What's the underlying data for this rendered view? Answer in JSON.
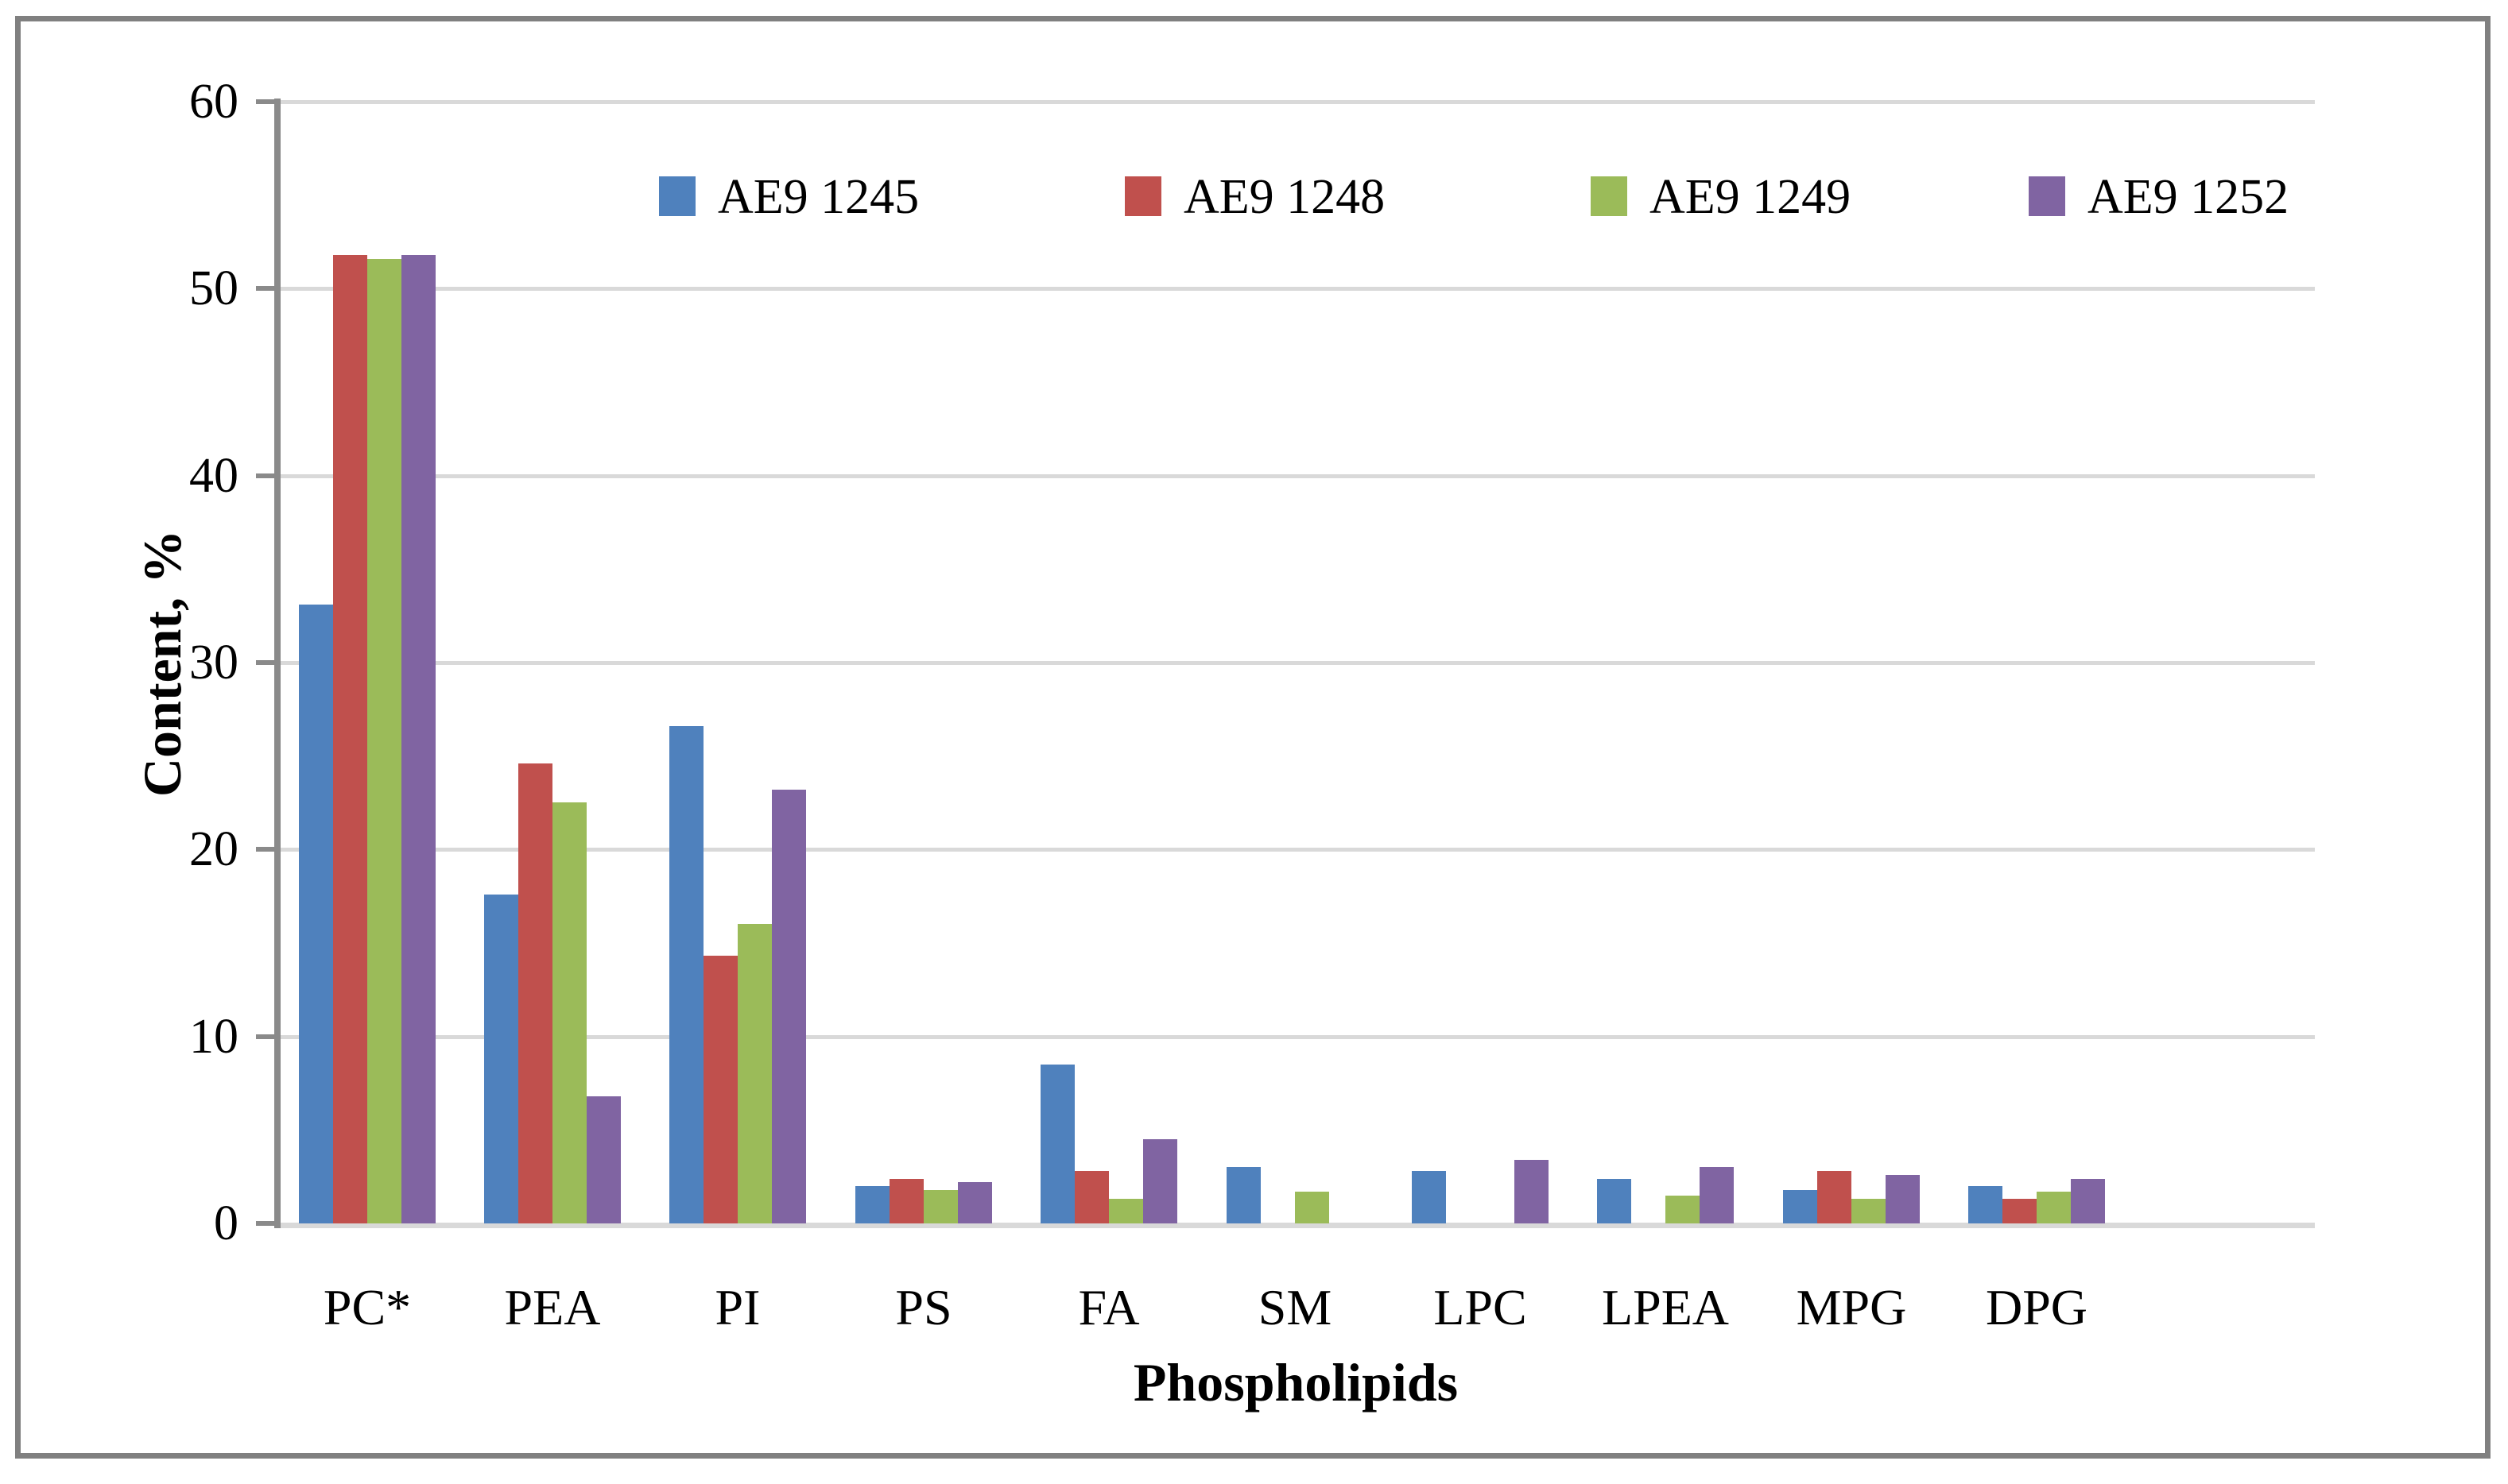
{
  "chart_data": {
    "type": "bar",
    "title": "",
    "xlabel": "Phospholipids",
    "ylabel": "Content, %",
    "ylim": [
      0,
      60
    ],
    "yticks": [
      0,
      10,
      20,
      30,
      40,
      50,
      60
    ],
    "grid": true,
    "legend_position": "top-inside",
    "categories": [
      "PC*",
      "PEA",
      "PI",
      "PS",
      "FA",
      "SM",
      "LPC",
      "LPEA",
      "MPG",
      "DPG"
    ],
    "series": [
      {
        "name": "AE9 1245",
        "color": "#4F81BD",
        "values": [
          33.1,
          17.6,
          26.6,
          2.0,
          8.5,
          3.0,
          2.8,
          2.4,
          1.8,
          2.0
        ]
      },
      {
        "name": "AE9 1248",
        "color": "#C0504D",
        "values": [
          51.8,
          24.6,
          14.3,
          2.4,
          2.8,
          0,
          0,
          0,
          2.8,
          1.3
        ]
      },
      {
        "name": "AE9 1249",
        "color": "#9BBB59",
        "values": [
          51.6,
          22.5,
          16.0,
          1.8,
          1.3,
          1.7,
          0,
          1.5,
          1.3,
          1.7
        ]
      },
      {
        "name": "AE9 1252",
        "color": "#8064A2",
        "values": [
          51.8,
          6.8,
          23.2,
          2.2,
          4.5,
          0,
          3.4,
          3.0,
          2.6,
          2.4
        ]
      }
    ],
    "empty_trailing_category_slots": 1,
    "gridline_color": "#D9D9D9",
    "axis_color": "#8A8A8A",
    "border_color": "#808080",
    "text_color": "#000000",
    "background_color": "#FFFFFF"
  }
}
